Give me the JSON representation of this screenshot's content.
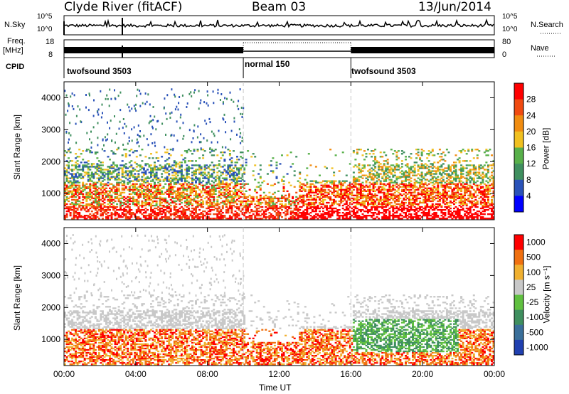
{
  "header": {
    "radar": "Clyde River (fitACF)",
    "beam": "Beam 03",
    "date": "13/Jun/2014"
  },
  "panels": {
    "nsky": {
      "label": "N.Sky",
      "tick_top": "10^5",
      "tick_bottom": "10^0",
      "right_label": "N.Search",
      "right_tick_top": "10^5",
      "right_tick_bottom": "10^0"
    },
    "freq": {
      "label_top": "Freq.",
      "label_bottom": "[MHz]",
      "tick_top": "18",
      "tick_bottom": "8",
      "right_label": "Nave",
      "right_tick_top": "80",
      "right_tick_bottom": "0"
    },
    "cpid": {
      "label": "CPID",
      "segments": [
        {
          "name": "twofsound 3503",
          "start_h": 0,
          "end_h": 10
        },
        {
          "name": "normal 150",
          "start_h": 10,
          "end_h": 16
        },
        {
          "name": "twofsound 3503",
          "start_h": 16,
          "end_h": 24
        }
      ]
    }
  },
  "chart_data": [
    {
      "type": "heatmap",
      "title": "",
      "xlabel": "Time UT",
      "ylabel": "Slant Range [km]",
      "x_ticks": [
        "00:00",
        "04:00",
        "08:00",
        "12:00",
        "16:00",
        "20:00",
        "00:00"
      ],
      "xlim_hours": [
        0,
        24
      ],
      "ylim": [
        180,
        4500
      ],
      "y_ticks": [
        1000,
        2000,
        3000,
        4000
      ],
      "colorbar": {
        "label": "Power [dB]",
        "ticks": [
          "4",
          "8",
          "12",
          "16",
          "20",
          "24",
          "28"
        ],
        "range": [
          0,
          30
        ],
        "colors": [
          "#0000ff",
          "#2a52b8",
          "#3f8f5f",
          "#58b04a",
          "#f0c020",
          "#f08c10",
          "#f04a10",
          "#ff0000"
        ]
      }
    },
    {
      "type": "heatmap",
      "title": "",
      "xlabel": "Time UT",
      "ylabel": "Slant Range [km]",
      "x_ticks": [
        "00:00",
        "04:00",
        "08:00",
        "12:00",
        "16:00",
        "20:00",
        "00:00"
      ],
      "xlim_hours": [
        0,
        24
      ],
      "ylim": [
        180,
        4500
      ],
      "y_ticks": [
        1000,
        2000,
        3000,
        4000
      ],
      "colorbar": {
        "label": "Velocity [m s⁻¹]",
        "ticks": [
          "1000",
          "500",
          "100",
          "25",
          "-25",
          "-100",
          "-500",
          "-1000"
        ],
        "colors": [
          "#2040b0",
          "#3a6f9a",
          "#3f8f5f",
          "#60c040",
          "#c8c8c8",
          "#f0b030",
          "#f07010",
          "#ff0000"
        ]
      }
    }
  ],
  "colors": {
    "ground_scatter": "#c8c8c8",
    "frame": "#000000",
    "divider": "#c8c8c8"
  }
}
